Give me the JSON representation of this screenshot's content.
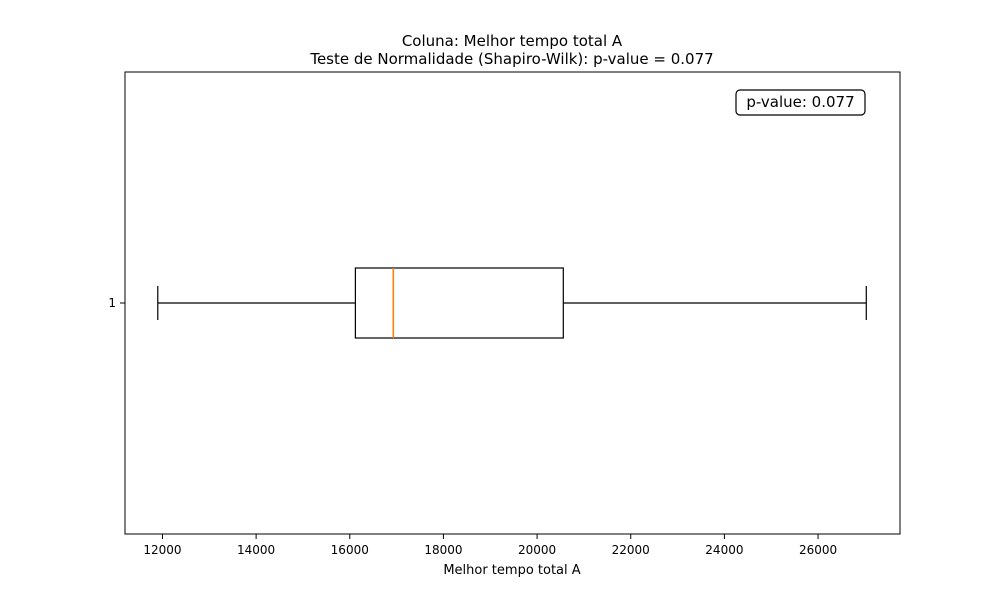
{
  "chart_data": {
    "type": "boxplot",
    "title_line1": "Coluna: Melhor tempo total A",
    "title_line2": "Teste de Normalidade (Shapiro-Wilk): p-value = 0.077",
    "xlabel": "Melhor tempo total A",
    "ylabel": "",
    "xlim": [
      11200,
      27750
    ],
    "xticks": [
      12000,
      14000,
      16000,
      18000,
      20000,
      22000,
      24000,
      26000
    ],
    "xtick_labels": [
      "12000",
      "14000",
      "16000",
      "18000",
      "20000",
      "22000",
      "24000",
      "26000"
    ],
    "ytick_labels": [
      "1"
    ],
    "orientation": "horizontal",
    "grid": false,
    "box": {
      "whisker_low": 11900,
      "q1": 16120,
      "median": 16930,
      "q3": 20560,
      "whisker_high": 27030
    },
    "annotation": "p-value: 0.077",
    "colors": {
      "box": "#000000",
      "median": "#ff7f0e"
    }
  }
}
